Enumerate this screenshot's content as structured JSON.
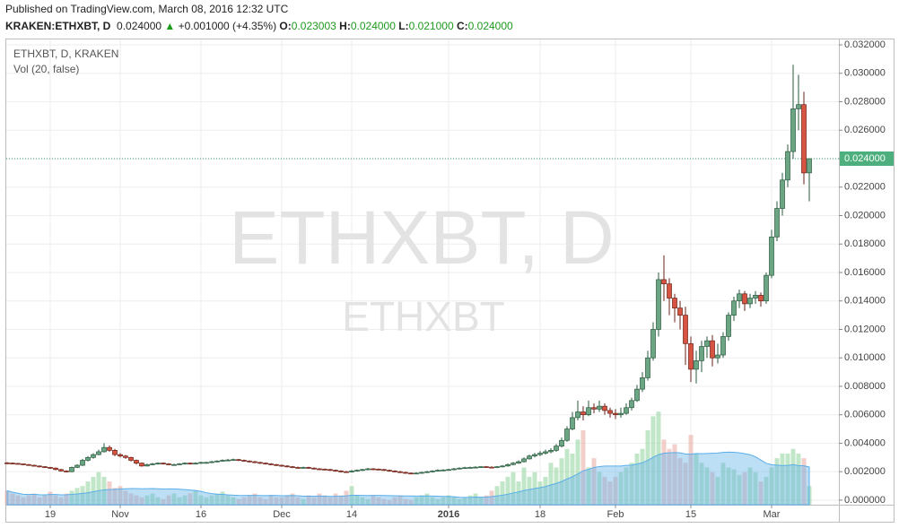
{
  "header": {
    "published": "Published on TradingView.com, March 08, 2016 12:32 UTC",
    "symbol": "KRAKEN:ETHXBT, D",
    "last": "0.024000",
    "arrow": "▲",
    "change": "+0.001000 (+4.35%)",
    "o_label": "O:",
    "o_value": "0.023003",
    "h_label": "H:",
    "h_value": "0.024000",
    "l_label": "L:",
    "l_value": "0.021000",
    "c_label": "C:",
    "c_value": "0.024000"
  },
  "chart_data": {
    "type": "candlestick",
    "symbol_label": "ETHXBT, D, KRAKEN",
    "indicator_label": "Vol (20, false)",
    "watermark": "ETHXBT, D",
    "watermark_sub": "ETHXBT",
    "last_price_label": "0.024000",
    "up_color": "#6ba583",
    "down_color": "#d75442",
    "volume_up_color": "#8fd49a",
    "volume_down_color": "#e8a8a0",
    "ma_color": "#5aaee8",
    "grid": true,
    "ylim": [
      -0.00032,
      0.03238
    ],
    "yticks": [
      {
        "value": 0,
        "label": "0.000000"
      },
      {
        "value": 0.002,
        "label": "0.002000"
      },
      {
        "value": 0.004,
        "label": "0.004000"
      },
      {
        "value": 0.006,
        "label": "0.006000"
      },
      {
        "value": 0.008,
        "label": "0.008000"
      },
      {
        "value": 0.01,
        "label": "0.010000"
      },
      {
        "value": 0.012,
        "label": "0.012000"
      },
      {
        "value": 0.014,
        "label": "0.014000"
      },
      {
        "value": 0.016,
        "label": "0.016000"
      },
      {
        "value": 0.018,
        "label": "0.018000"
      },
      {
        "value": 0.02,
        "label": "0.020000"
      },
      {
        "value": 0.022,
        "label": "0.022000"
      },
      {
        "value": 0.024,
        "label": "0.024000"
      },
      {
        "value": 0.026,
        "label": "0.026000"
      },
      {
        "value": 0.028,
        "label": "0.028000"
      },
      {
        "value": 0.03,
        "label": "0.030000"
      },
      {
        "value": 0.032,
        "label": "0.032000"
      }
    ],
    "volume_lim": [
      0,
      500
    ],
    "categories": [
      null,
      null,
      null,
      null,
      null,
      null,
      null,
      null,
      "19",
      null,
      null,
      null,
      null,
      null,
      null,
      null,
      null,
      null,
      null,
      null,
      null,
      "Nov",
      null,
      null,
      null,
      null,
      null,
      null,
      null,
      null,
      null,
      null,
      null,
      null,
      null,
      null,
      "16",
      null,
      null,
      null,
      null,
      null,
      null,
      null,
      null,
      null,
      null,
      null,
      null,
      null,
      null,
      "Dec",
      null,
      null,
      null,
      null,
      null,
      null,
      null,
      null,
      null,
      null,
      null,
      null,
      "14",
      null,
      null,
      null,
      null,
      null,
      null,
      null,
      null,
      null,
      null,
      null,
      null,
      null,
      null,
      null,
      null,
      null,
      "2016",
      null,
      null,
      null,
      null,
      null,
      null,
      null,
      null,
      null,
      null,
      null,
      null,
      null,
      null,
      null,
      null,
      "18",
      null,
      null,
      null,
      null,
      null,
      null,
      null,
      null,
      null,
      null,
      null,
      null,
      null,
      "Feb",
      null,
      null,
      null,
      null,
      null,
      null,
      null,
      null,
      null,
      null,
      null,
      null,
      null,
      "15",
      null,
      null,
      null,
      null,
      null,
      null,
      null,
      null,
      null,
      null,
      null,
      null,
      null,
      null,
      "Mar",
      null,
      null,
      null,
      null,
      null,
      null,
      null
    ],
    "open": [
      0.00262,
      0.0026,
      0.00258,
      0.00255,
      0.0025,
      0.00245,
      0.0024,
      0.00235,
      0.0023,
      0.00225,
      0.00215,
      0.00205,
      0.002,
      0.0023,
      0.00245,
      0.0028,
      0.003,
      0.0032,
      0.0034,
      0.0037,
      0.0035,
      0.0032,
      0.0031,
      0.003,
      0.0028,
      0.0026,
      0.0024,
      0.0025,
      0.00255,
      0.0026,
      0.00255,
      0.0025,
      0.0025,
      0.00255,
      0.0026,
      0.00255,
      0.0026,
      0.00265,
      0.00265,
      0.0027,
      0.00275,
      0.0028,
      0.00282,
      0.00285,
      0.0028,
      0.00275,
      0.0027,
      0.00265,
      0.0026,
      0.00255,
      0.0025,
      0.00245,
      0.0024,
      0.00235,
      0.0023,
      0.00228,
      0.0023,
      0.00225,
      0.0022,
      0.00218,
      0.00215,
      0.0021,
      0.00205,
      0.002,
      0.00198,
      0.00205,
      0.0021,
      0.00215,
      0.0022,
      0.00218,
      0.00215,
      0.0021,
      0.00205,
      0.002,
      0.00195,
      0.0019,
      0.00188,
      0.0019,
      0.00195,
      0.002,
      0.00205,
      0.0021,
      0.00212,
      0.00215,
      0.0022,
      0.00225,
      0.00228,
      0.0023,
      0.00232,
      0.00235,
      0.00232,
      0.0023,
      0.00235,
      0.0024,
      0.0025,
      0.0026,
      0.0027,
      0.0029,
      0.0031,
      0.0032,
      0.0033,
      0.0034,
      0.0035,
      0.0038,
      0.0042,
      0.005,
      0.0058,
      0.0062,
      0.006,
      0.0065,
      0.0064,
      0.0066,
      0.0063,
      0.0061,
      0.006,
      0.0061,
      0.0065,
      0.007,
      0.0078,
      0.0086,
      0.01,
      0.012,
      0.0155,
      0.0152,
      0.0142,
      0.0135,
      0.013,
      0.011,
      0.0092,
      0.0098,
      0.0108,
      0.0112,
      0.01,
      0.0102,
      0.0115,
      0.013,
      0.014,
      0.0145,
      0.0138,
      0.0142,
      0.0144,
      0.014,
      0.0158,
      0.0185,
      0.0205,
      0.0225,
      0.0245,
      0.0275,
      0.0278,
      0.023003
    ],
    "high": [
      0.00268,
      0.00264,
      0.00262,
      0.00258,
      0.00254,
      0.0025,
      0.00244,
      0.0024,
      0.00234,
      0.0023,
      0.0022,
      0.0021,
      0.00236,
      0.00252,
      0.0029,
      0.0031,
      0.0033,
      0.00355,
      0.004,
      0.00385,
      0.0036,
      0.0033,
      0.00318,
      0.00305,
      0.00285,
      0.00265,
      0.00256,
      0.00262,
      0.00266,
      0.00265,
      0.0026,
      0.00256,
      0.0026,
      0.00265,
      0.00264,
      0.00266,
      0.0027,
      0.0027,
      0.00276,
      0.0028,
      0.00286,
      0.0029,
      0.00292,
      0.0029,
      0.00285,
      0.0028,
      0.00275,
      0.0027,
      0.00265,
      0.0026,
      0.00255,
      0.0025,
      0.00245,
      0.0024,
      0.00236,
      0.00236,
      0.00235,
      0.0023,
      0.00225,
      0.00222,
      0.0022,
      0.00215,
      0.0021,
      0.00205,
      0.00212,
      0.00216,
      0.0022,
      0.00226,
      0.00225,
      0.00222,
      0.0022,
      0.00215,
      0.0021,
      0.00205,
      0.002,
      0.00195,
      0.00196,
      0.002,
      0.00206,
      0.0021,
      0.00216,
      0.00218,
      0.0022,
      0.00226,
      0.0023,
      0.00234,
      0.00236,
      0.00238,
      0.0024,
      0.0024,
      0.00237,
      0.0024,
      0.00246,
      0.00258,
      0.00268,
      0.0028,
      0.003,
      0.0032,
      0.00332,
      0.00345,
      0.00355,
      0.00365,
      0.00395,
      0.0044,
      0.0052,
      0.0062,
      0.007,
      0.0066,
      0.007,
      0.0068,
      0.007,
      0.0068,
      0.0065,
      0.0064,
      0.0065,
      0.0068,
      0.0072,
      0.0081,
      0.009,
      0.0105,
      0.0125,
      0.016,
      0.0172,
      0.0156,
      0.0145,
      0.014,
      0.0136,
      0.0115,
      0.0105,
      0.0112,
      0.0115,
      0.0116,
      0.011,
      0.0118,
      0.0132,
      0.0143,
      0.0148,
      0.0147,
      0.0145,
      0.0147,
      0.0146,
      0.016,
      0.019,
      0.021,
      0.023,
      0.025,
      0.0306,
      0.0299,
      0.0287,
      0.024
    ],
    "low": [
      0.00255,
      0.00254,
      0.00252,
      0.00246,
      0.00242,
      0.00236,
      0.0023,
      0.00226,
      0.0022,
      0.0021,
      0.002,
      0.00195,
      0.00196,
      0.00226,
      0.0024,
      0.00272,
      0.00292,
      0.00315,
      0.00335,
      0.0034,
      0.0031,
      0.003,
      0.0029,
      0.00272,
      0.0025,
      0.00235,
      0.00236,
      0.00245,
      0.0025,
      0.0025,
      0.00245,
      0.00244,
      0.00246,
      0.0025,
      0.0025,
      0.0025,
      0.00255,
      0.0026,
      0.0026,
      0.00265,
      0.0027,
      0.00275,
      0.00278,
      0.00275,
      0.0027,
      0.00265,
      0.0026,
      0.00255,
      0.0025,
      0.00245,
      0.0024,
      0.00235,
      0.0023,
      0.00225,
      0.00223,
      0.00222,
      0.0022,
      0.00215,
      0.00212,
      0.0021,
      0.00205,
      0.002,
      0.00195,
      0.00192,
      0.00194,
      0.002,
      0.00205,
      0.0021,
      0.00212,
      0.0021,
      0.00205,
      0.002,
      0.00195,
      0.0019,
      0.00185,
      0.00182,
      0.00183,
      0.00185,
      0.0019,
      0.00195,
      0.002,
      0.00205,
      0.00207,
      0.0021,
      0.00215,
      0.0022,
      0.00222,
      0.00225,
      0.00227,
      0.00227,
      0.00225,
      0.00225,
      0.0023,
      0.00235,
      0.00245,
      0.00255,
      0.00265,
      0.00285,
      0.003,
      0.0031,
      0.0032,
      0.0033,
      0.0034,
      0.0037,
      0.0041,
      0.0049,
      0.0056,
      0.0056,
      0.0059,
      0.0061,
      0.0062,
      0.006,
      0.0058,
      0.0057,
      0.0058,
      0.006,
      0.0063,
      0.0069,
      0.0076,
      0.0084,
      0.0098,
      0.0115,
      0.014,
      0.013,
      0.0125,
      0.012,
      0.0095,
      0.0083,
      0.0082,
      0.009,
      0.01,
      0.0094,
      0.0096,
      0.01,
      0.0112,
      0.0126,
      0.0135,
      0.0133,
      0.0135,
      0.0138,
      0.0136,
      0.0138,
      0.0156,
      0.0182,
      0.02,
      0.022,
      0.024,
      0.026,
      0.0222,
      0.021
    ],
    "close": [
      0.0026,
      0.00258,
      0.00255,
      0.0025,
      0.00245,
      0.0024,
      0.00235,
      0.0023,
      0.00225,
      0.00215,
      0.00205,
      0.002,
      0.0023,
      0.00245,
      0.0028,
      0.003,
      0.0032,
      0.0034,
      0.0037,
      0.0035,
      0.0032,
      0.0031,
      0.003,
      0.0028,
      0.0026,
      0.0024,
      0.0025,
      0.00255,
      0.0026,
      0.00255,
      0.0025,
      0.0025,
      0.00255,
      0.0026,
      0.00255,
      0.0026,
      0.00265,
      0.00265,
      0.0027,
      0.00275,
      0.0028,
      0.00282,
      0.00285,
      0.0028,
      0.00275,
      0.0027,
      0.00265,
      0.0026,
      0.00255,
      0.0025,
      0.00245,
      0.0024,
      0.00235,
      0.0023,
      0.00228,
      0.0023,
      0.00225,
      0.0022,
      0.00218,
      0.00215,
      0.0021,
      0.00205,
      0.002,
      0.00198,
      0.00205,
      0.0021,
      0.00215,
      0.0022,
      0.00218,
      0.00215,
      0.0021,
      0.00205,
      0.002,
      0.00195,
      0.0019,
      0.00188,
      0.0019,
      0.00195,
      0.002,
      0.00205,
      0.0021,
      0.00212,
      0.00215,
      0.0022,
      0.00225,
      0.00228,
      0.0023,
      0.00232,
      0.00235,
      0.00232,
      0.0023,
      0.00235,
      0.0024,
      0.0025,
      0.0026,
      0.0027,
      0.0029,
      0.0031,
      0.0032,
      0.0033,
      0.0034,
      0.0035,
      0.0038,
      0.0042,
      0.005,
      0.0058,
      0.0062,
      0.006,
      0.0065,
      0.0064,
      0.0066,
      0.0063,
      0.0061,
      0.006,
      0.0061,
      0.0065,
      0.007,
      0.0078,
      0.0086,
      0.01,
      0.012,
      0.0155,
      0.0152,
      0.0142,
      0.0135,
      0.013,
      0.011,
      0.0092,
      0.0098,
      0.0108,
      0.0112,
      0.01,
      0.0102,
      0.0115,
      0.013,
      0.014,
      0.0145,
      0.0138,
      0.0142,
      0.0144,
      0.014,
      0.0158,
      0.0185,
      0.0205,
      0.0225,
      0.0245,
      0.0275,
      0.0278,
      0.023,
      0.024
    ],
    "volume": [
      15,
      12,
      10,
      8,
      10,
      12,
      8,
      10,
      14,
      10,
      8,
      12,
      15,
      18,
      20,
      25,
      30,
      35,
      30,
      25,
      18,
      20,
      15,
      12,
      10,
      8,
      10,
      12,
      8,
      6,
      10,
      12,
      8,
      10,
      12,
      15,
      10,
      8,
      10,
      12,
      14,
      10,
      8,
      6,
      8,
      10,
      12,
      8,
      6,
      10,
      8,
      8,
      10,
      12,
      8,
      6,
      10,
      8,
      12,
      10,
      8,
      12,
      10,
      15,
      20,
      10,
      8,
      6,
      10,
      8,
      6,
      5,
      8,
      10,
      6,
      5,
      8,
      10,
      12,
      8,
      6,
      8,
      10,
      8,
      6,
      8,
      10,
      12,
      8,
      10,
      15,
      20,
      25,
      30,
      35,
      25,
      40,
      30,
      35,
      25,
      30,
      45,
      40,
      50,
      60,
      55,
      70,
      80,
      40,
      50,
      35,
      30,
      25,
      30,
      35,
      40,
      45,
      55,
      60,
      80,
      95,
      100,
      70,
      60,
      65,
      50,
      45,
      75,
      55,
      45,
      40,
      35,
      30,
      45,
      40,
      38,
      32,
      35,
      40,
      35,
      25,
      30,
      40,
      50,
      55,
      55,
      60,
      55,
      50,
      20
    ]
  }
}
